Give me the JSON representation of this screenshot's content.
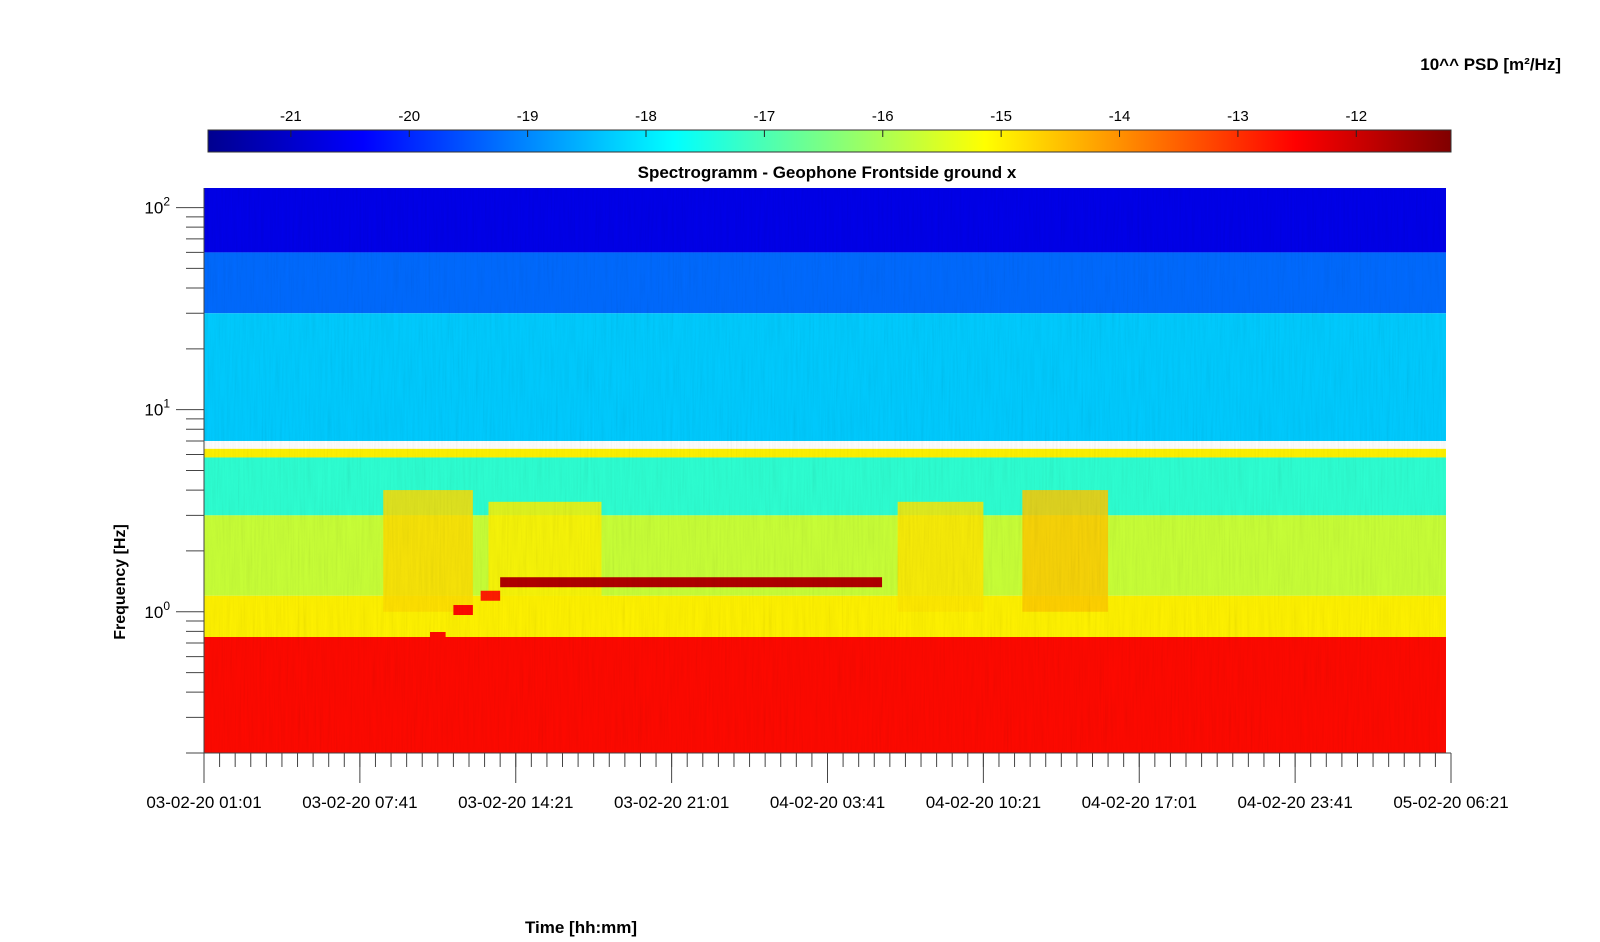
{
  "chart_data": {
    "type": "heatmap",
    "title": "Spectrogramm - Geophone Frontside ground x",
    "xlabel": "Time [hh:mm]",
    "ylabel": "Frequency [Hz]",
    "yscale": "log",
    "ylim": [
      0.2,
      125
    ],
    "xlim": [
      "03-02-20 01:01",
      "05-02-20 06:21"
    ],
    "x_ticks": [
      "03-02-20 01:01",
      "03-02-20 07:41",
      "03-02-20 14:21",
      "03-02-20 21:01",
      "04-02-20 03:41",
      "04-02-20 10:21",
      "04-02-20 17:01",
      "04-02-20 23:41",
      "05-02-20 06:21"
    ],
    "y_ticks": [
      {
        "base": "10",
        "exp": "0",
        "value": 1
      },
      {
        "base": "10",
        "exp": "1",
        "value": 10
      },
      {
        "base": "10",
        "exp": "2",
        "value": 100
      }
    ],
    "colorbar": {
      "label": "10^^ PSD [m²/Hz]",
      "location": "top",
      "colormap": "jet",
      "range": [
        -21.7,
        -11.2
      ],
      "ticks": [
        "-21",
        "-20",
        "-19",
        "-18",
        "-17",
        "-16",
        "-15",
        "-14",
        "-13",
        "-12"
      ]
    },
    "grid": false,
    "frequency_bands": [
      {
        "f_low": 60,
        "f_high": 125,
        "log_psd": -20.6
      },
      {
        "f_low": 30,
        "f_high": 60,
        "log_psd": -19.3
      },
      {
        "f_low": 7,
        "f_high": 30,
        "log_psd": -18.3
      },
      {
        "f_low": 5.8,
        "f_high": 6.4,
        "log_psd": -15.0
      },
      {
        "f_low": 3,
        "f_high": 5.8,
        "log_psd": -17.3
      },
      {
        "f_low": 1.2,
        "f_high": 3,
        "log_psd": -15.7
      },
      {
        "f_low": 0.75,
        "f_high": 1.2,
        "log_psd": -15.0
      },
      {
        "f_low": 0.2,
        "f_high": 0.75,
        "log_psd": -12.6
      }
    ],
    "narrowband_events": [
      {
        "start": "03-02-20 10:41",
        "end": "03-02-20 11:21",
        "frequency": 0.75,
        "log_psd": -12.6
      },
      {
        "start": "03-02-20 11:41",
        "end": "03-02-20 12:31",
        "frequency": 1.02,
        "log_psd": -12.6
      },
      {
        "start": "03-02-20 12:51",
        "end": "03-02-20 13:41",
        "frequency": 1.2,
        "log_psd": -12.8
      },
      {
        "start": "03-02-20 13:41",
        "end": "04-02-20 06:01",
        "frequency": 1.4,
        "log_psd": -11.7
      }
    ],
    "broadband_activity": [
      {
        "start": "03-02-20 08:41",
        "end": "03-02-20 12:31",
        "f_low": 1.0,
        "f_high": 4.0,
        "log_psd": -14.8
      },
      {
        "start": "03-02-20 13:11",
        "end": "03-02-20 18:01",
        "f_low": 1.0,
        "f_high": 3.5,
        "log_psd": -15.0
      },
      {
        "start": "04-02-20 06:41",
        "end": "04-02-20 10:21",
        "f_low": 1.0,
        "f_high": 3.5,
        "log_psd": -14.9
      },
      {
        "start": "04-02-20 12:01",
        "end": "04-02-20 15:41",
        "f_low": 1.0,
        "f_high": 4.0,
        "log_psd": -14.6
      }
    ]
  }
}
